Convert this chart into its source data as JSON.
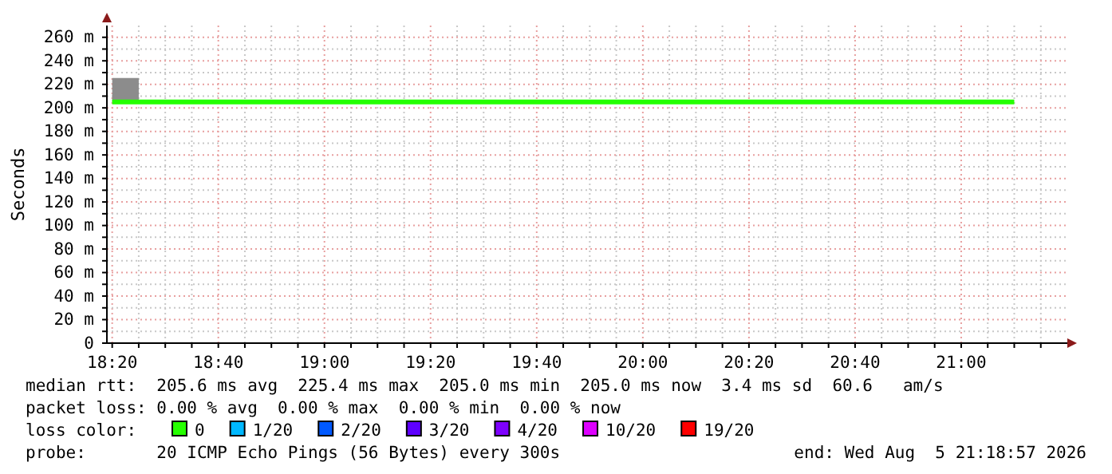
{
  "chart_data": {
    "type": "step",
    "ylabel": "Seconds",
    "x": [
      "2026-08-05T18:20",
      "2026-08-05T18:25",
      "2026-08-05T21:10"
    ],
    "xlim": [
      "2026-08-05T18:19",
      "2026-08-05T21:20"
    ],
    "xticks": [
      {
        "value": "2026-08-05T18:20",
        "label": "18:20"
      },
      {
        "value": "2026-08-05T18:25",
        "label": null
      },
      {
        "value": "2026-08-05T18:30",
        "label": null
      },
      {
        "value": "2026-08-05T18:35",
        "label": null
      },
      {
        "value": "2026-08-05T18:40",
        "label": "18:40"
      },
      {
        "value": "2026-08-05T18:45",
        "label": null
      },
      {
        "value": "2026-08-05T18:50",
        "label": null
      },
      {
        "value": "2026-08-05T18:55",
        "label": null
      },
      {
        "value": "2026-08-05T19:00",
        "label": "19:00"
      },
      {
        "value": "2026-08-05T19:05",
        "label": null
      },
      {
        "value": "2026-08-05T19:10",
        "label": null
      },
      {
        "value": "2026-08-05T19:15",
        "label": null
      },
      {
        "value": "2026-08-05T19:20",
        "label": "19:20"
      },
      {
        "value": "2026-08-05T19:25",
        "label": null
      },
      {
        "value": "2026-08-05T19:30",
        "label": null
      },
      {
        "value": "2026-08-05T19:35",
        "label": null
      },
      {
        "value": "2026-08-05T19:40",
        "label": "19:40"
      },
      {
        "value": "2026-08-05T19:45",
        "label": null
      },
      {
        "value": "2026-08-05T19:50",
        "label": null
      },
      {
        "value": "2026-08-05T19:55",
        "label": null
      },
      {
        "value": "2026-08-05T20:00",
        "label": "20:00"
      },
      {
        "value": "2026-08-05T20:05",
        "label": null
      },
      {
        "value": "2026-08-05T20:10",
        "label": null
      },
      {
        "value": "2026-08-05T20:15",
        "label": null
      },
      {
        "value": "2026-08-05T20:20",
        "label": "20:20"
      },
      {
        "value": "2026-08-05T20:25",
        "label": null
      },
      {
        "value": "2026-08-05T20:30",
        "label": null
      },
      {
        "value": "2026-08-05T20:35",
        "label": null
      },
      {
        "value": "2026-08-05T20:40",
        "label": "20:40"
      },
      {
        "value": "2026-08-05T20:45",
        "label": null
      },
      {
        "value": "2026-08-05T20:50",
        "label": null
      },
      {
        "value": "2026-08-05T20:55",
        "label": null
      },
      {
        "value": "2026-08-05T21:00",
        "label": "21:00"
      },
      {
        "value": "2026-08-05T21:05",
        "label": null
      },
      {
        "value": "2026-08-05T21:10",
        "label": null
      },
      {
        "value": "2026-08-05T21:15",
        "label": null
      }
    ],
    "ylim": [
      0,
      270
    ],
    "yticks": [
      {
        "value": 0,
        "label": "0"
      },
      {
        "value": 10,
        "label": null
      },
      {
        "value": 20,
        "label": "20 m"
      },
      {
        "value": 30,
        "label": null
      },
      {
        "value": 40,
        "label": "40 m"
      },
      {
        "value": 50,
        "label": null
      },
      {
        "value": 60,
        "label": "60 m"
      },
      {
        "value": 70,
        "label": null
      },
      {
        "value": 80,
        "label": "80 m"
      },
      {
        "value": 90,
        "label": null
      },
      {
        "value": 100,
        "label": "100 m"
      },
      {
        "value": 110,
        "label": null
      },
      {
        "value": 120,
        "label": "120 m"
      },
      {
        "value": 130,
        "label": null
      },
      {
        "value": 140,
        "label": "140 m"
      },
      {
        "value": 150,
        "label": null
      },
      {
        "value": 160,
        "label": "160 m"
      },
      {
        "value": 170,
        "label": null
      },
      {
        "value": 180,
        "label": "180 m"
      },
      {
        "value": 190,
        "label": null
      },
      {
        "value": 200,
        "label": "200 m"
      },
      {
        "value": 210,
        "label": null
      },
      {
        "value": 220,
        "label": "220 m"
      },
      {
        "value": 230,
        "label": null
      },
      {
        "value": 240,
        "label": "240 m"
      },
      {
        "value": 250,
        "label": null
      },
      {
        "value": 260,
        "label": "260 m"
      }
    ],
    "grid": true,
    "legend": "bottom",
    "legend_title": "loss color:",
    "series": [
      {
        "name": "0",
        "color": "#26ff00",
        "values": [
          205,
          205,
          205
        ]
      },
      {
        "type": "bar",
        "color": "#8c8c8c",
        "x": [
          "2026-08-05T18:22:30"
        ],
        "base": [
          205
        ],
        "values": [
          20.4
        ]
      },
      {
        "name": "1/20",
        "color": "#00b8ff",
        "values": [
          null,
          null,
          null
        ]
      },
      {
        "name": "2/20",
        "color": "#0059ff",
        "values": [
          null,
          null,
          null
        ]
      },
      {
        "name": "3/20",
        "color": "#5e00ff",
        "values": [
          null,
          null,
          null
        ]
      },
      {
        "name": "4/20",
        "color": "#7e00ff",
        "values": [
          null,
          null,
          null
        ]
      },
      {
        "name": "10/20",
        "color": "#dd00ff",
        "values": [
          null,
          null,
          null
        ]
      },
      {
        "name": "19/20",
        "color": "#ff0000",
        "values": [
          null,
          null,
          null
        ]
      }
    ],
    "annotations": [
      "median rtt:  205.6 ms avg  225.4 ms max  205.0 ms min  205.0 ms now  3.4 ms sd  60.6   am/s",
      "packet loss: 0.00 % avg  0.00 % max  0.00 % min  0.00 % now",
      "probe:       20 ICMP Echo Pings (56 Bytes) every 300s",
      "end: Wed Aug  5 21:18:57 2026"
    ]
  }
}
